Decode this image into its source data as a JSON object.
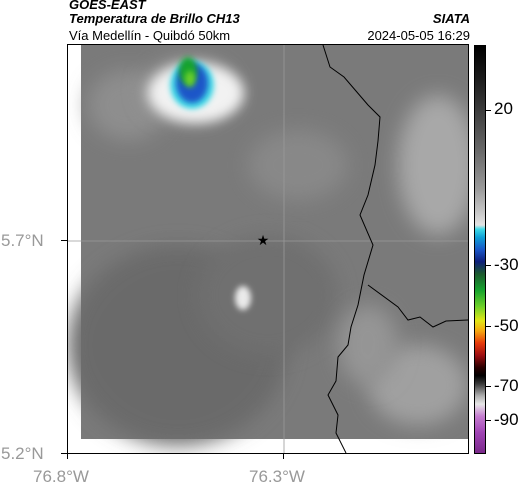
{
  "header": {
    "satellite": "GOES-EAST",
    "product": "Temperatura de Brillo CH13",
    "organization": "SIATA",
    "route": "Vía Medellín - Quibdó 50km",
    "datetime": "2024-05-05 16:29"
  },
  "map": {
    "lat_ticks": [
      "5.7°N",
      "5.2°N"
    ],
    "lon_ticks": [
      "76.8°W",
      "76.3°W"
    ],
    "grid": true,
    "marker": "star-icon",
    "colors": {
      "land_gray": "#7a7a7a",
      "warm_dark": "#6a6a6a",
      "cloud_light": "#e8e8e8",
      "cold_cyan": "#2ec5e8",
      "cold_blue": "#1a57c8",
      "cold_green": "#16a32d"
    }
  },
  "colorbar": {
    "ticks": [
      "20",
      "-30",
      "-50",
      "-70",
      "-90"
    ],
    "colors": [
      "#000000",
      "#9a9a9a",
      "#3fd9e6",
      "#1a57c8",
      "#16a32d",
      "#e2e617",
      "#e63a0c",
      "#000000",
      "#a044b4"
    ]
  }
}
